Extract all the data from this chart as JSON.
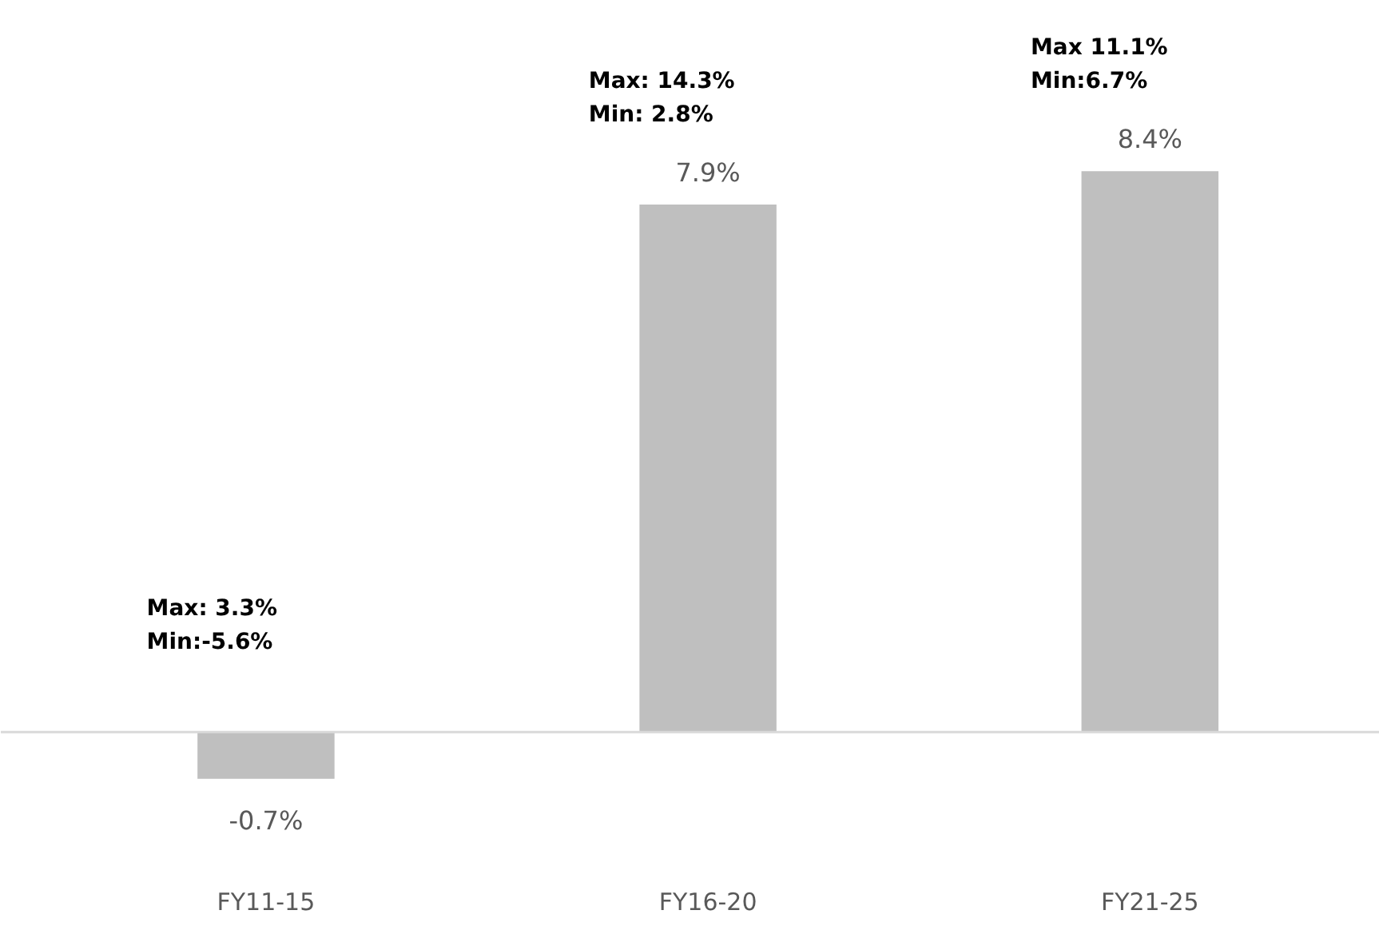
{
  "chart_data": {
    "type": "bar",
    "categories": [
      "FY11-15",
      "FY16-20",
      "FY21-25"
    ],
    "values": [
      -0.7,
      7.9,
      8.4
    ],
    "value_labels": [
      "-0.7%",
      "7.9%",
      "8.4%"
    ],
    "color": "#bfbfbf",
    "annotations": [
      "Max: 3.3%\nMin:-5.6%",
      "Max: 14.3%\nMin: 2.8%",
      "Max 11.1%\nMin:6.7%"
    ],
    "grid": false
  }
}
